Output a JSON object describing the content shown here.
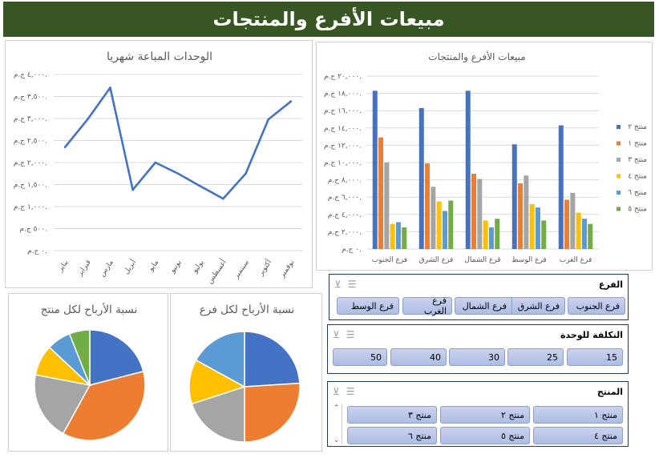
{
  "header": {
    "title": "مبيعات الأفرع والمنتجات"
  },
  "icons": {
    "multi_select": "multi-select-icon",
    "clear_filter": "clear-filter-icon"
  },
  "slicers": {
    "branch": {
      "title": "الفرع",
      "items": [
        "فرع الجنوب",
        "فرع الشرق",
        "فرع الشمال",
        "فرع الغرب",
        "فرع الوسط"
      ]
    },
    "unit_cost": {
      "title": "التكلفة للوحدة",
      "items": [
        "15",
        "25",
        "30",
        "40",
        "50"
      ]
    },
    "product": {
      "title": "المنتج",
      "items": [
        "منتج ١",
        "منتج ٢",
        "منتج ٣",
        "منتج ٤",
        "منتج ٥",
        "منتج ٦"
      ],
      "scroll_up": "⌃",
      "scroll_down": "⌄"
    }
  },
  "chart_data": [
    {
      "id": "monthly_units",
      "type": "line",
      "title": "الوحدات المباعة شهريا",
      "categories": [
        "يناير",
        "فبراير",
        "مارس",
        "أبريل",
        "مايو",
        "يونيو",
        "يوليو",
        "أغسطس",
        "سبتمبر",
        "أكتوبر",
        "نوفمبر"
      ],
      "values": [
        2350,
        2980,
        3700,
        1380,
        2000,
        1750,
        1460,
        1180,
        1750,
        2980,
        3390
      ],
      "ylim": [
        0,
        4000
      ],
      "yticks": [
        "٠ ج.م.",
        "٥٠٠ ج.م.",
        "١,٠٠٠ ج.م.",
        "١,٥٠٠ ج.م.",
        "٢,٠٠٠ ج.م.",
        "٢,٥٠٠ ج.م.",
        "٣,٠٠٠ ج.م.",
        "٣,٥٠٠ ج.م.",
        "٤,٠٠٠ ج.م."
      ],
      "grid": true,
      "color": "#4472c4"
    },
    {
      "id": "branch_product_sales",
      "type": "bar",
      "title": "مبيعات الأفرع والمنتجات",
      "categories": [
        "فرع الجنوب",
        "فرع الشرق",
        "فرع الشمال",
        "فرع الوسط",
        "فرع الغرب"
      ],
      "ylim": [
        0,
        20000
      ],
      "yticks": [
        "٠ ج.م.",
        "٢,٠٠٠ ج.م.",
        "٤,٠٠٠ ج.م.",
        "٦,٠٠٠ ج.م.",
        "٨,٠٠٠ ج.م.",
        "١٠,٠٠٠ ج.م.",
        "١٢,٠٠٠ ج.م.",
        "١٤,٠٠٠ ج.م.",
        "١٦,٠٠٠ ج.م.",
        "١٨,٠٠٠ ج.م.",
        "٢٠,٠٠٠ ج.م."
      ],
      "legend_position": "right",
      "series": [
        {
          "name": "منتج ٢",
          "color": "#4472c4",
          "values": [
            18300,
            16300,
            18300,
            12100,
            14300
          ]
        },
        {
          "name": "منتج ١",
          "color": "#ed7d31",
          "values": [
            12900,
            9900,
            8700,
            7600,
            5700
          ]
        },
        {
          "name": "منتج ٣",
          "color": "#a5a5a5",
          "values": [
            10000,
            7200,
            8100,
            8500,
            6500
          ]
        },
        {
          "name": "منتج ٤",
          "color": "#ffc000",
          "values": [
            2900,
            5500,
            3300,
            5200,
            4200
          ]
        },
        {
          "name": "منتج ٦",
          "color": "#5b9bd5",
          "values": [
            3100,
            4400,
            2500,
            4800,
            3500
          ]
        },
        {
          "name": "منتج ٥",
          "color": "#70ad47",
          "values": [
            2500,
            5600,
            3500,
            3300,
            2900
          ]
        }
      ]
    },
    {
      "id": "profit_by_branch",
      "type": "pie",
      "title": "نسبة الأرباح لكل فرع",
      "slices": [
        {
          "value": 24,
          "color": "#4472c4"
        },
        {
          "value": 26,
          "color": "#ed7d31"
        },
        {
          "value": 20,
          "color": "#a5a5a5"
        },
        {
          "value": 13,
          "color": "#ffc000"
        },
        {
          "value": 17,
          "color": "#5b9bd5"
        }
      ]
    },
    {
      "id": "profit_by_product",
      "type": "pie",
      "title": "نسبة الأرباح لكل منتج",
      "slices": [
        {
          "value": 21,
          "color": "#4472c4"
        },
        {
          "value": 37,
          "color": "#ed7d31"
        },
        {
          "value": 20,
          "color": "#a5a5a5"
        },
        {
          "value": 9,
          "color": "#ffc000"
        },
        {
          "value": 7,
          "color": "#5b9bd5"
        },
        {
          "value": 6,
          "color": "#70ad47"
        }
      ]
    }
  ]
}
